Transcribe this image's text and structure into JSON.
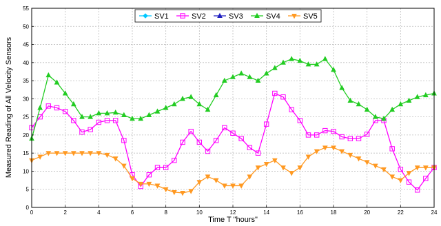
{
  "chart_data": {
    "type": "line",
    "title": "",
    "xlabel": "Time T \"hours\"",
    "ylabel": "Measured Reading of All Velocity Sensors",
    "xlim": [
      0,
      24
    ],
    "ylim": [
      0,
      55
    ],
    "xticks": [
      0,
      2,
      4,
      6,
      8,
      10,
      12,
      14,
      16,
      18,
      20,
      22,
      24
    ],
    "yticks": [
      0,
      5,
      10,
      15,
      20,
      25,
      30,
      35,
      40,
      45,
      50,
      55
    ],
    "grid": true,
    "legend_position": "top",
    "x": [
      0,
      0.5,
      1,
      1.5,
      2,
      2.5,
      3,
      3.5,
      4,
      4.5,
      5,
      5.5,
      6,
      6.5,
      7,
      7.5,
      8,
      8.5,
      9,
      9.5,
      10,
      10.5,
      11,
      11.5,
      12,
      12.5,
      13,
      13.5,
      14,
      14.5,
      15,
      15.5,
      16,
      16.5,
      17,
      17.5,
      18,
      18.5,
      19,
      19.5,
      20,
      20.5,
      21,
      21.5,
      22,
      22.5,
      23,
      23.5,
      24
    ],
    "series": [
      {
        "name": "SV1",
        "color": "#00c8ff",
        "marker": "diamond",
        "hidden": true,
        "values": [
          19,
          27.5,
          36.5,
          34.5,
          31.5,
          28.5,
          25,
          25,
          26,
          26,
          26.2,
          25.5,
          24.5,
          24.5,
          25.5,
          26.5,
          27.5,
          28.5,
          30,
          30.5,
          28.5,
          27,
          31,
          35,
          36,
          37,
          36,
          35,
          37,
          38.5,
          40,
          41,
          40.5,
          39.5,
          39.5,
          41,
          38,
          33,
          29.5,
          28.5,
          27,
          25,
          24.5,
          27,
          28.5,
          29.5,
          30.5,
          31,
          31.5
        ]
      },
      {
        "name": "SV2",
        "color": "#ff00ff",
        "marker": "square",
        "values": [
          22,
          25,
          28,
          27.5,
          26.5,
          24,
          20.8,
          21.5,
          23.5,
          24,
          24,
          18.5,
          9,
          5.8,
          9,
          11,
          11,
          13,
          18,
          21,
          18,
          15.5,
          18.5,
          22,
          20.5,
          19,
          16.5,
          15,
          23,
          31.5,
          30.5,
          27,
          24,
          20,
          20,
          21.2,
          21,
          19.5,
          19,
          19,
          20.2,
          24,
          24,
          16.2,
          10.5,
          7,
          4.8,
          8,
          11
        ]
      },
      {
        "name": "SV3",
        "color": "#2020c0",
        "marker": "triangle",
        "hidden": true,
        "values": [
          19,
          27.5,
          36.5,
          34.5,
          31.5,
          28.5,
          25,
          25,
          26,
          26,
          26.2,
          25.5,
          24.5,
          24.5,
          25.5,
          26.5,
          27.5,
          28.5,
          30,
          30.5,
          28.5,
          27,
          31,
          35,
          36,
          37,
          36,
          35,
          37,
          38.5,
          40,
          41,
          40.5,
          39.5,
          39.5,
          41,
          38,
          33,
          29.5,
          28.5,
          27,
          25,
          24.5,
          27,
          28.5,
          29.5,
          30.5,
          31,
          31.5
        ]
      },
      {
        "name": "SV4",
        "color": "#22cc22",
        "marker": "triangle",
        "values": [
          19,
          27.5,
          36.5,
          34.5,
          31.5,
          28.5,
          25,
          25,
          26,
          26,
          26.2,
          25.5,
          24.5,
          24.5,
          25.5,
          26.5,
          27.5,
          28.5,
          30,
          30.5,
          28.5,
          27,
          31,
          35,
          36,
          37,
          36,
          35,
          37,
          38.5,
          40,
          41,
          40.5,
          39.5,
          39.5,
          41,
          38,
          33,
          29.5,
          28.5,
          27,
          25,
          24.5,
          27,
          28.5,
          29.5,
          30.5,
          31,
          31.5
        ]
      },
      {
        "name": "SV5",
        "color": "#ff9922",
        "marker": "triangle-down",
        "values": [
          13,
          14,
          15,
          15,
          15,
          15,
          15,
          15,
          15,
          14.5,
          13.5,
          11.5,
          8,
          6.5,
          6.5,
          6,
          5,
          4.2,
          4,
          4.5,
          7,
          8.5,
          7.5,
          6,
          6,
          6,
          8.5,
          11,
          12,
          13,
          11,
          9.5,
          11,
          14,
          15.5,
          16.5,
          16.5,
          15.5,
          14.5,
          13.5,
          12.5,
          11.5,
          10.5,
          8.5,
          7.5,
          9.5,
          11,
          11,
          11
        ]
      }
    ]
  }
}
